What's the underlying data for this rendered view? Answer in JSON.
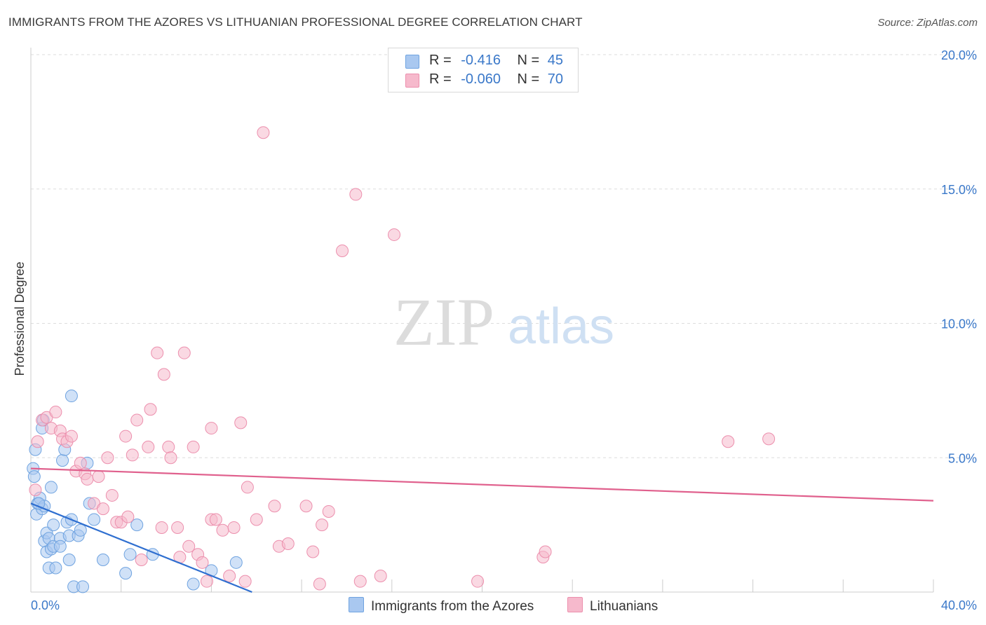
{
  "header": {
    "title": "IMMIGRANTS FROM THE AZORES VS LITHUANIAN PROFESSIONAL DEGREE CORRELATION CHART",
    "source": "Source: ZipAtlas.com"
  },
  "watermark": {
    "zip": "ZIP",
    "atlas": "atlas"
  },
  "legend": {
    "r_label": "R =",
    "n_label": "N =",
    "rows": [
      {
        "r": "-0.416",
        "n": "45",
        "color": "#a9c8f0"
      },
      {
        "r": "-0.060",
        "n": "70",
        "color": "#f6b9cc"
      }
    ]
  },
  "bottom_legend": [
    {
      "label": "Immigrants from the Azores",
      "color": "#a9c8f0"
    },
    {
      "label": "Lithuanians",
      "color": "#f6b9cc"
    }
  ],
  "chart_data": {
    "type": "scatter",
    "title": "IMMIGRANTS FROM THE AZORES VS LITHUANIAN PROFESSIONAL DEGREE CORRELATION CHART",
    "xlabel": "",
    "ylabel": "Professional Degree",
    "xlim": [
      0,
      40
    ],
    "ylim": [
      0,
      20
    ],
    "x_tick_labels": [
      "0.0%",
      "40.0%"
    ],
    "y_ticks": [
      5,
      10,
      15,
      20
    ],
    "y_tick_labels": [
      "5.0%",
      "10.0%",
      "15.0%",
      "20.0%"
    ],
    "grid": true,
    "legend_position": "top-center",
    "series": [
      {
        "name": "Immigrants from the Azores",
        "color": "#6fa3e0",
        "fill": "#a9c8f0",
        "trend_color": "#2f6fd0",
        "trend": {
          "x": [
            0.0,
            9.8
          ],
          "y": [
            3.3,
            0.0
          ]
        },
        "points": [
          [
            0.1,
            4.6
          ],
          [
            0.15,
            4.3
          ],
          [
            0.2,
            5.3
          ],
          [
            0.25,
            2.9
          ],
          [
            0.3,
            3.3
          ],
          [
            0.4,
            3.5
          ],
          [
            0.5,
            3.1
          ],
          [
            0.5,
            6.1
          ],
          [
            0.55,
            6.4
          ],
          [
            0.6,
            3.2
          ],
          [
            0.6,
            1.9
          ],
          [
            0.7,
            1.5
          ],
          [
            0.7,
            2.2
          ],
          [
            0.8,
            0.9
          ],
          [
            0.8,
            2.0
          ],
          [
            0.9,
            3.9
          ],
          [
            0.9,
            1.6
          ],
          [
            1.0,
            1.7
          ],
          [
            1.0,
            2.5
          ],
          [
            1.1,
            0.9
          ],
          [
            1.3,
            2.0
          ],
          [
            1.3,
            1.7
          ],
          [
            1.4,
            4.9
          ],
          [
            1.5,
            5.3
          ],
          [
            1.6,
            2.6
          ],
          [
            1.7,
            2.1
          ],
          [
            1.7,
            1.2
          ],
          [
            1.8,
            2.7
          ],
          [
            1.8,
            7.3
          ],
          [
            1.9,
            0.2
          ],
          [
            2.1,
            2.1
          ],
          [
            2.2,
            2.3
          ],
          [
            2.3,
            0.2
          ],
          [
            2.5,
            4.8
          ],
          [
            2.6,
            3.3
          ],
          [
            2.8,
            2.7
          ],
          [
            3.2,
            1.2
          ],
          [
            4.2,
            0.7
          ],
          [
            4.4,
            1.4
          ],
          [
            4.7,
            2.5
          ],
          [
            5.4,
            1.4
          ],
          [
            7.2,
            0.3
          ],
          [
            8.0,
            0.8
          ],
          [
            9.1,
            1.1
          ],
          [
            0.35,
            3.3
          ]
        ]
      },
      {
        "name": "Lithuanians",
        "color": "#ec8fad",
        "fill": "#f6b9cc",
        "trend_color": "#e0608d",
        "trend": {
          "x": [
            0.0,
            40.0
          ],
          "y": [
            4.6,
            3.4
          ]
        },
        "points": [
          [
            0.2,
            3.8
          ],
          [
            0.3,
            5.6
          ],
          [
            0.5,
            6.4
          ],
          [
            0.7,
            6.5
          ],
          [
            0.9,
            6.1
          ],
          [
            1.1,
            6.7
          ],
          [
            1.3,
            6.0
          ],
          [
            1.4,
            5.7
          ],
          [
            1.6,
            5.6
          ],
          [
            1.8,
            5.8
          ],
          [
            2.0,
            4.5
          ],
          [
            2.2,
            4.8
          ],
          [
            2.4,
            4.4
          ],
          [
            2.5,
            4.2
          ],
          [
            2.8,
            3.3
          ],
          [
            3.0,
            4.3
          ],
          [
            3.2,
            3.1
          ],
          [
            3.4,
            5.0
          ],
          [
            3.6,
            3.6
          ],
          [
            3.8,
            2.6
          ],
          [
            4.0,
            2.6
          ],
          [
            4.2,
            5.8
          ],
          [
            4.3,
            2.8
          ],
          [
            4.5,
            5.1
          ],
          [
            4.7,
            6.4
          ],
          [
            4.9,
            1.2
          ],
          [
            5.2,
            5.4
          ],
          [
            5.3,
            6.8
          ],
          [
            5.6,
            8.9
          ],
          [
            5.8,
            2.4
          ],
          [
            5.9,
            8.1
          ],
          [
            6.1,
            5.4
          ],
          [
            6.2,
            5.0
          ],
          [
            6.5,
            2.4
          ],
          [
            6.6,
            1.3
          ],
          [
            6.8,
            8.9
          ],
          [
            7.0,
            1.7
          ],
          [
            7.2,
            5.4
          ],
          [
            7.4,
            1.4
          ],
          [
            7.6,
            1.1
          ],
          [
            7.8,
            0.4
          ],
          [
            8.0,
            2.7
          ],
          [
            8.0,
            6.1
          ],
          [
            8.2,
            2.7
          ],
          [
            8.5,
            2.3
          ],
          [
            8.8,
            0.6
          ],
          [
            9.0,
            2.4
          ],
          [
            9.3,
            6.3
          ],
          [
            9.5,
            0.4
          ],
          [
            9.6,
            3.9
          ],
          [
            10.0,
            2.7
          ],
          [
            10.3,
            17.1
          ],
          [
            10.8,
            3.2
          ],
          [
            11.0,
            1.7
          ],
          [
            11.4,
            1.8
          ],
          [
            12.2,
            3.2
          ],
          [
            12.5,
            1.5
          ],
          [
            12.8,
            0.3
          ],
          [
            12.9,
            2.5
          ],
          [
            13.2,
            3.0
          ],
          [
            13.8,
            12.7
          ],
          [
            14.4,
            14.8
          ],
          [
            14.6,
            0.4
          ],
          [
            15.5,
            0.6
          ],
          [
            16.1,
            13.3
          ],
          [
            19.8,
            0.4
          ],
          [
            22.7,
            1.3
          ],
          [
            22.8,
            1.5
          ],
          [
            30.9,
            5.6
          ],
          [
            32.7,
            5.7
          ]
        ]
      }
    ]
  }
}
